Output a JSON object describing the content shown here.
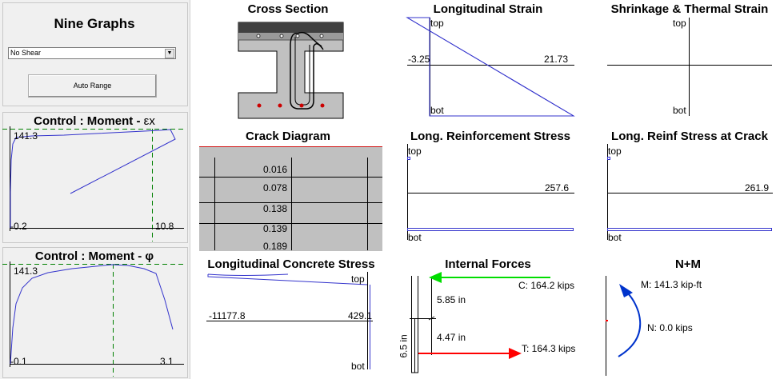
{
  "sidebar": {
    "title": "Nine Graphs",
    "dropdown_value": "No Shear",
    "auto_range_label": "Auto Range",
    "moment_curv_ex": {
      "title_prefix": "Control : Moment - ",
      "title_symbol": "εx",
      "ymax_label": "141.3",
      "xmin_label": "-0.2",
      "xmax_label": "10.8"
    },
    "moment_curv_phi": {
      "title": "Control : Moment - φ",
      "ymax_label": "141.3",
      "xmin_label": "-0.1",
      "xmax_label": "3.1"
    }
  },
  "cross_section": {
    "title": "Cross Section"
  },
  "longitudinal_strain": {
    "title": "Longitudinal Strain",
    "top": "top",
    "bot": "bot",
    "left_value": "-3.25",
    "right_value": "21.73"
  },
  "shrinkage": {
    "title": "Shrinkage & Thermal Strain",
    "top": "top",
    "bot": "bot"
  },
  "crack_diagram": {
    "title": "Crack Diagram",
    "values": [
      "0.016",
      "0.078",
      "0.138",
      "0.139",
      "0.189"
    ]
  },
  "long_reinf_stress": {
    "title": "Long. Reinforcement Stress",
    "top": "top",
    "bot": "bot",
    "value": "257.6"
  },
  "long_reinf_crack": {
    "title": "Long. Reinf Stress at Crack",
    "top": "top",
    "bot": "bot",
    "value": "261.9"
  },
  "long_concrete_stress": {
    "title": "Longitudinal Concrete Stress",
    "top": "top",
    "bot": "bot",
    "left_value": "-11177.8",
    "right_value": "429.1"
  },
  "internal_forces": {
    "title": "Internal Forces",
    "compression": "C: 164.2 kips",
    "tension": "T: 164.3 kips",
    "arm_upper": "5.85 in",
    "arm_lower": "4.47 in",
    "depth": "6.5 in"
  },
  "n_plus_m": {
    "title": "N+M",
    "moment": "M: 141.3 kip-ft",
    "axial": "N:   0.0 kips"
  },
  "colors": {
    "curve": "#3333cc",
    "guide": "#008000",
    "compression_arrow": "#00dd00",
    "tension_arrow": "#ff0000",
    "moment_arrow": "#0033cc",
    "rebar": "#cc0000"
  }
}
